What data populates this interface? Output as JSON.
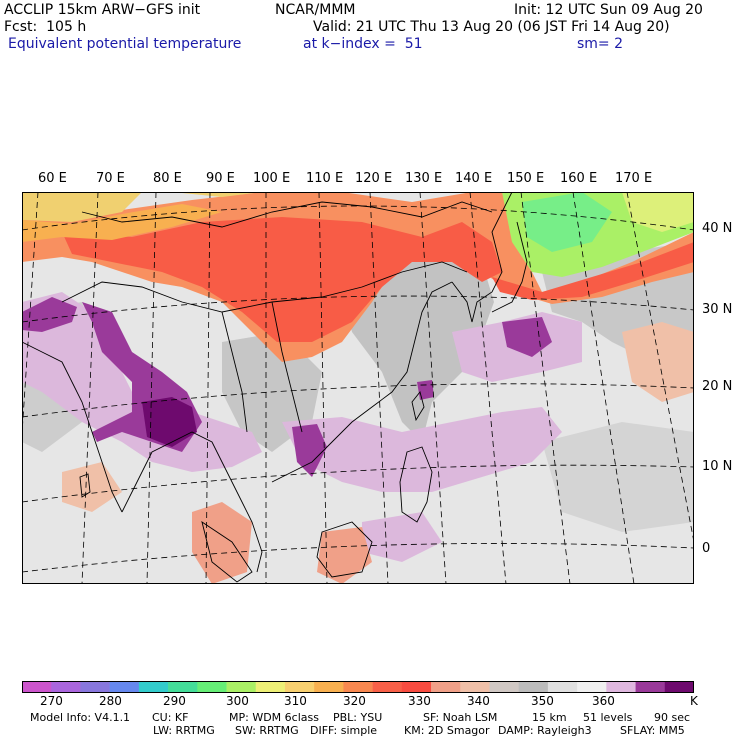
{
  "header": {
    "model_title": "ACCLIP 15km ARW−GFS init",
    "forecast": "Fcst:  105 h",
    "org": "NCAR/MMM",
    "init": "Init: 12 UTC Sun 09 Aug 20",
    "valid": "Valid: 21 UTC Thu 13 Aug 20 (06 JST Fri 14 Aug 20)",
    "field": "Equivalent potential temperature",
    "level": "at k−index =  51",
    "smooth": "sm= 2"
  },
  "map": {
    "lon_labels": [
      "60 E",
      "70 E",
      "80 E",
      "90 E",
      "100 E",
      "110 E",
      "120 E",
      "130 E",
      "140 E",
      "150 E",
      "160 E",
      "170 E"
    ],
    "lat_labels": [
      "40 N",
      "30 N",
      "20 N",
      "10 N",
      "0"
    ]
  },
  "colorbar": {
    "colors": [
      "#cc55cc",
      "#aa66dd",
      "#8877dd",
      "#6688ee",
      "#33cccc",
      "#44dd99",
      "#66ee77",
      "#aaf066",
      "#eef077",
      "#f8d070",
      "#f8b050",
      "#f88850",
      "#f86048",
      "#f84c40",
      "#f0a088",
      "#f0c0a8",
      "#d0c8c4",
      "#bcbcbc",
      "#e0e0e0",
      "#f0f0f0",
      "#dfb8df",
      "#9a3a9a",
      "#6e0a6e"
    ],
    "tick_labels": [
      "270",
      "280",
      "290",
      "300",
      "310",
      "320",
      "330",
      "340",
      "350",
      "360"
    ],
    "unit": "K"
  },
  "model_info": {
    "line1": [
      "Model Info: V4.1.1",
      "CU: KF",
      "MP: WDM 6class",
      "PBL: YSU",
      "SF: Noah LSM",
      "15 km",
      "51 levels",
      "90 sec"
    ],
    "line2": [
      "LW: RRTMG",
      "SW: RRTMG",
      "DIFF: simple",
      "KM: 2D Smagor",
      "DAMP: Rayleigh3",
      "SFLAY: MM5"
    ]
  }
}
